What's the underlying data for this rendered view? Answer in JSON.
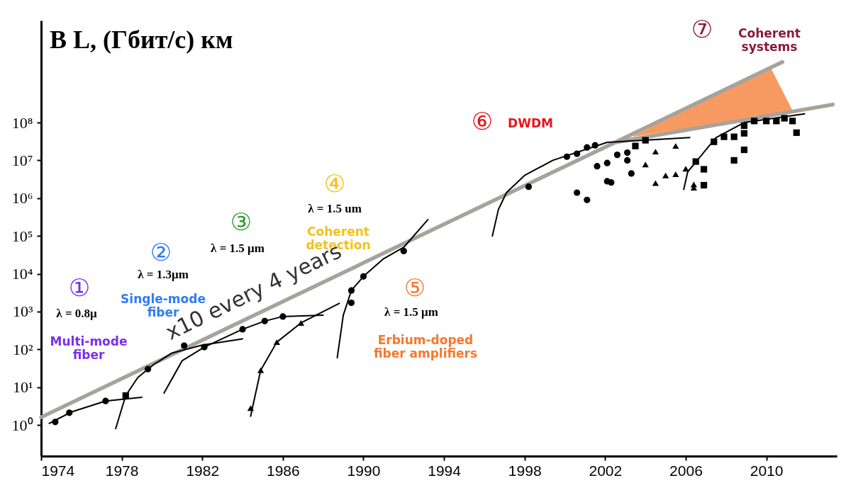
{
  "chart_data": {
    "type": "scatter",
    "title": "B L, (Гбит/с) км",
    "log": "y",
    "grid": false,
    "xlim": [
      1974,
      2013.5
    ],
    "xticks": [
      1974,
      1978,
      1982,
      1986,
      1990,
      1994,
      1998,
      2002,
      2006,
      2010
    ],
    "ylim": [
      0.15,
      50000000000
    ],
    "yticks": [
      {
        "value": 1,
        "label": "10⁰"
      },
      {
        "value": 10,
        "label": "10¹"
      },
      {
        "value": 100,
        "label": "10²"
      },
      {
        "value": 1000,
        "label": "10³"
      },
      {
        "value": 10000,
        "label": "10⁴"
      },
      {
        "value": 100000,
        "label": "10⁵"
      },
      {
        "value": 1000000,
        "label": "10⁶"
      },
      {
        "value": 10000000,
        "label": "10⁷"
      },
      {
        "value": 100000000,
        "label": "10⁸"
      }
    ],
    "series": [
      {
        "type": "area",
        "color": "#f79a62",
        "x": [
          2003.4,
          2010.2,
          2011.3
        ],
        "values": [
          43000000,
          2800000000,
          200000000
        ]
      },
      {
        "type": "line",
        "color": "#a8a29a",
        "marker": "none",
        "line_style": "solid",
        "x": [
          1974,
          2002.5,
          2013.3
        ],
        "values": [
          1.6,
          30000000,
          300000000
        ]
      },
      {
        "type": "line",
        "color": "#a8a29a",
        "marker": "none",
        "line_style": "solid",
        "x": [
          2002.5,
          2010.8
        ],
        "values": [
          30000000,
          4000000000
        ]
      },
      {
        "type": "line",
        "color": "#000000",
        "marker": "none",
        "line_style": "solid",
        "x": [
          1974.4,
          1975.5,
          1977.2,
          1979
        ],
        "values": [
          1.1,
          2.2,
          4.3,
          5.4
        ]
      },
      {
        "type": "line",
        "color": "#000000",
        "marker": "none",
        "line_style": "solid",
        "x": [
          1977.7,
          1978.2,
          1978.8,
          1979.6,
          1980.5,
          1982,
          1984
        ],
        "values": [
          0.8,
          6,
          18,
          40,
          80,
          130,
          190
        ]
      },
      {
        "type": "line",
        "color": "#000000",
        "marker": "none",
        "line_style": "solid",
        "x": [
          1980.1,
          1981,
          1982.1,
          1984,
          1985.1,
          1986,
          1988
        ],
        "values": [
          7,
          50,
          115,
          340,
          560,
          740,
          800
        ]
      },
      {
        "type": "line",
        "color": "#000000",
        "marker": "none",
        "line_style": "solid",
        "x": [
          1984.4,
          1984.5,
          1984.9,
          1985.7,
          1986.9,
          1988.8
        ],
        "values": [
          1.7,
          3,
          28,
          155,
          500,
          1650
        ]
      },
      {
        "type": "line",
        "color": "#000000",
        "marker": "none",
        "line_style": "solid",
        "x": [
          1988.7,
          1989,
          1989.4,
          1990,
          1991,
          1992,
          1993.2
        ],
        "values": [
          60,
          800,
          3600,
          8500,
          25000,
          50000,
          270000
        ]
      },
      {
        "type": "line",
        "color": "#000000",
        "marker": "none",
        "line_style": "solid",
        "x": [
          1996.4,
          1996.7,
          1997.1,
          1998,
          1999.4,
          2002.1,
          2006.2
        ],
        "values": [
          100000,
          500000,
          1400000,
          4000000,
          10000000,
          30000000,
          40000000
        ]
      },
      {
        "type": "line",
        "color": "#000000",
        "marker": "none",
        "line_style": "solid",
        "x": [
          2005.9,
          2006.1,
          2006.5,
          2007.5,
          2008.9,
          2011.9
        ],
        "values": [
          1700000,
          5000000,
          9000000,
          40000000,
          100000000,
          170000000
        ]
      },
      {
        "color": "#000000",
        "marker": "circle",
        "x": [
          1974.7,
          1975.4,
          1977.2,
          1979.3,
          1981.1,
          1982.1,
          1984,
          1985.1,
          1986,
          1989.4,
          1989.4,
          1990,
          1992,
          1998.2,
          2000.1,
          2000.6,
          2001.1,
          2001.5,
          2001.6,
          2002.1,
          2002.6,
          2003.1,
          2003.1,
          2003.3,
          2002.1,
          2002.3,
          2000.6,
          2001.1
        ],
        "values": [
          1.2,
          2.1,
          4.3,
          30,
          125,
          115,
          340,
          560,
          740,
          3600,
          1700,
          8500,
          40000,
          2000000,
          12500000,
          15000000,
          22000000,
          25000000,
          7000000,
          8500000,
          14000000,
          16000000,
          10000000,
          4500000,
          2800000,
          2600000,
          1400000,
          900000
        ]
      },
      {
        "color": "#000000",
        "marker": "triangle",
        "x": [
          1984.4,
          1984.9,
          1985.7,
          1986.9,
          2004.5,
          2005.5,
          2004,
          2004.5,
          2005,
          2005.5,
          2006,
          2006.4,
          2006.4
        ],
        "values": [
          2.8,
          28,
          155,
          500,
          17000000,
          24000000,
          7800000,
          2500000,
          4000000,
          4300000,
          6000000,
          2300000,
          1900000
        ]
      },
      {
        "color": "#000000",
        "marker": "square",
        "x": [
          1978.2,
          2003.5,
          2004,
          2006.5,
          2006.9,
          2006.9,
          2007.4,
          2007.9,
          2008.4,
          2008.4,
          2008.9,
          2008.9,
          2008.9,
          2009.4,
          2010,
          2010.5,
          2010.9,
          2011.3,
          2011.5
        ],
        "values": [
          6,
          24000000,
          34000000,
          9300000,
          5800000,
          2200000,
          31000000,
          42000000,
          42000000,
          10000000,
          52000000,
          19000000,
          83000000,
          110000000,
          110000000,
          110000000,
          130000000,
          110000000,
          54000000
        ]
      }
    ],
    "annotations": [
      "①",
      "λ = 0.8μ",
      "Multi-mode\nfiber",
      "②",
      "λ = 1.3μm",
      "Single-mode\nfiber",
      "③",
      "λ = 1.5 μm",
      "④",
      "λ = 1.5 um",
      "Coherent\ndetection",
      "⑤",
      "λ = 1.5 μm",
      "Erbium-doped\nfiber amplifiers",
      "⑥",
      "DWDM",
      "⑦",
      "Coherent\nsystems",
      "x10 every 4 years"
    ]
  }
}
